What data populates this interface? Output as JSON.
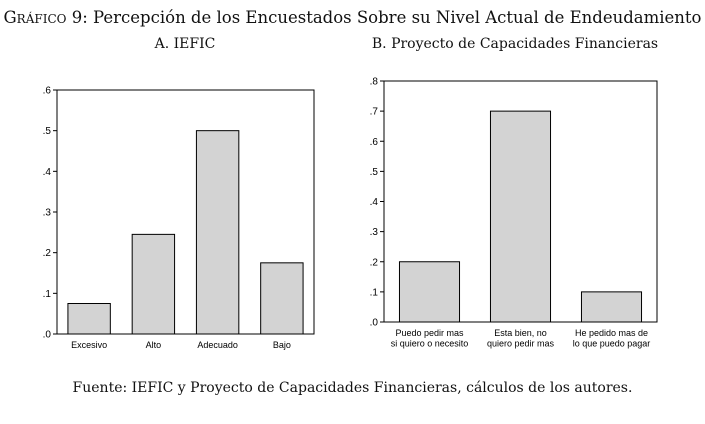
{
  "figure": {
    "title_lead": "Gráfico 9:",
    "title_rest": "Percepción de los Encuestados Sobre su Nivel Actual de Endeudamiento",
    "source": "Fuente: IEFIC y Proyecto de Capacidades Financieras, cálculos de los autores."
  },
  "chart_data": [
    {
      "type": "bar",
      "title": "A. IEFIC",
      "categories": [
        [
          "Excesivo"
        ],
        [
          "Alto"
        ],
        [
          "Adecuado"
        ],
        [
          "Bajo"
        ]
      ],
      "values": [
        0.075,
        0.245,
        0.5,
        0.175
      ],
      "ylim": [
        0,
        0.6
      ],
      "yticks": [
        ".0",
        ".1",
        ".2",
        ".3",
        ".4",
        ".5",
        ".6"
      ],
      "grid": false,
      "bar_color": "#d3d3d3"
    },
    {
      "type": "bar",
      "title": "B. Proyecto de Capacidades Financieras",
      "categories": [
        [
          "Puedo pedir mas",
          "si quiero o necesito"
        ],
        [
          "Esta bien, no",
          "quiero pedir mas"
        ],
        [
          "He pedido mas de",
          "lo que puedo pagar"
        ]
      ],
      "values": [
        0.2,
        0.7,
        0.1
      ],
      "ylim": [
        0,
        0.8
      ],
      "yticks": [
        ".0",
        ".1",
        ".2",
        ".3",
        ".4",
        ".5",
        ".6",
        ".7",
        ".8"
      ],
      "grid": false,
      "bar_color": "#d3d3d3"
    }
  ]
}
